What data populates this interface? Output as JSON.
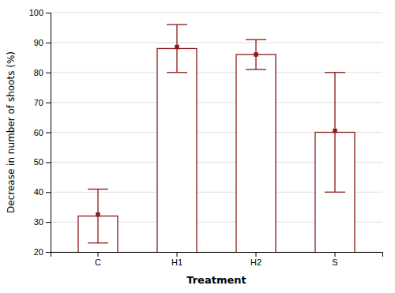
{
  "chart_data": {
    "type": "bar",
    "categories": [
      "C",
      "H1",
      "H2",
      "S"
    ],
    "values": [
      32,
      88,
      86,
      60
    ],
    "ci_lower": [
      23,
      80,
      81,
      40
    ],
    "ci_upper": [
      41,
      96,
      91,
      80
    ],
    "point_means": [
      32.5,
      88.5,
      86.0,
      60.5
    ],
    "color": "#8B1A1A",
    "xlabel": "Treatment",
    "ylabel": "Decrease in number of shoots (%)",
    "ylim": [
      20,
      100
    ],
    "yticks": [
      20,
      30,
      40,
      50,
      60,
      70,
      80,
      90,
      100
    ],
    "grid": true
  }
}
